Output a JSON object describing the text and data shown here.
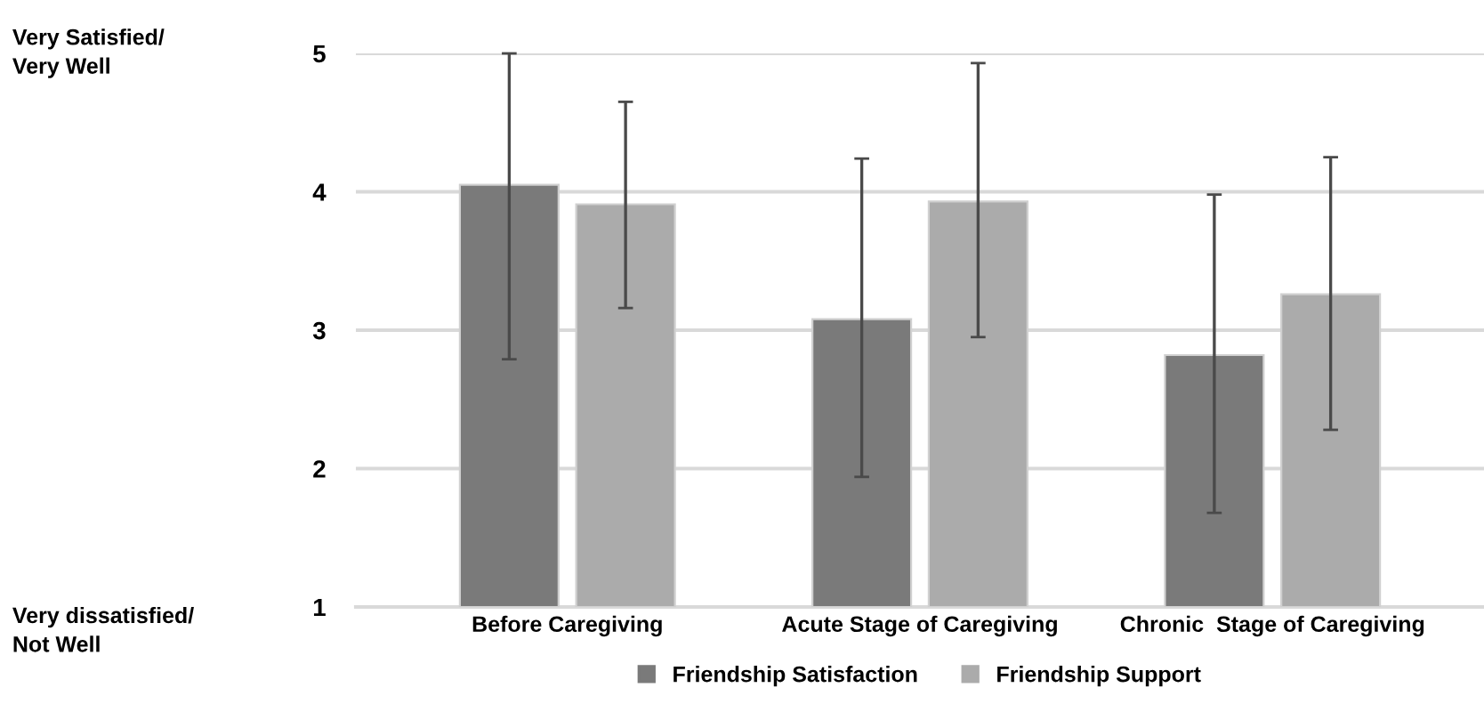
{
  "chart_data": {
    "type": "bar",
    "categories": [
      "Before Caregiving",
      "Acute Stage of Caregiving",
      "Chronic  Stage of Caregiving"
    ],
    "series": [
      {
        "name": "Friendship Satisfaction",
        "color": "#7a7a7a",
        "values": [
          4.05,
          3.08,
          2.82
        ],
        "errors": [
          [
            2.79,
            5.0
          ],
          [
            1.94,
            4.24
          ],
          [
            1.68,
            3.98
          ]
        ]
      },
      {
        "name": "Friendship Support",
        "color": "#ababab",
        "values": [
          3.91,
          3.93,
          3.26
        ],
        "errors": [
          [
            3.16,
            4.65
          ],
          [
            2.95,
            4.93
          ],
          [
            2.28,
            4.25
          ]
        ]
      }
    ],
    "ylim": [
      1,
      5
    ],
    "yticks": [
      1,
      2,
      3,
      4,
      5
    ],
    "grid": "y",
    "legend": "bottom",
    "annotations": [
      "Very Satisfied/\nVery Well",
      "Very dissatisfied/\nNot Well"
    ]
  }
}
